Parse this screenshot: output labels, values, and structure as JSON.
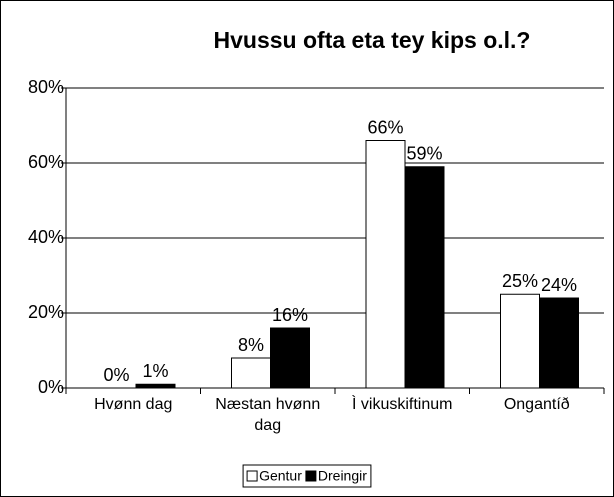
{
  "chart_data": {
    "type": "bar",
    "title": "Hvussu ofta eta tey kips o.l.?",
    "categories": [
      "Hvønn dag",
      "Næstan hvønn dag",
      "Ì vikuskiftinum",
      "Ongantíð"
    ],
    "series": [
      {
        "name": "Gentur",
        "color": "#ffffff",
        "values": [
          0,
          8,
          66,
          25
        ],
        "value_labels": [
          "0%",
          "8%",
          "66%",
          "25%"
        ]
      },
      {
        "name": "Dreingir",
        "color": "#000000",
        "values": [
          1,
          16,
          59,
          24
        ],
        "value_labels": [
          "1%",
          "16%",
          "59%",
          "24%"
        ]
      }
    ],
    "ylim": [
      0,
      80
    ],
    "yticks": [
      {
        "value": 0,
        "label": "0%"
      },
      {
        "value": 20,
        "label": "20%"
      },
      {
        "value": 40,
        "label": "40%"
      },
      {
        "value": 60,
        "label": "60%"
      },
      {
        "value": 80,
        "label": "80%"
      }
    ],
    "grid": true,
    "legend": "bottom"
  }
}
